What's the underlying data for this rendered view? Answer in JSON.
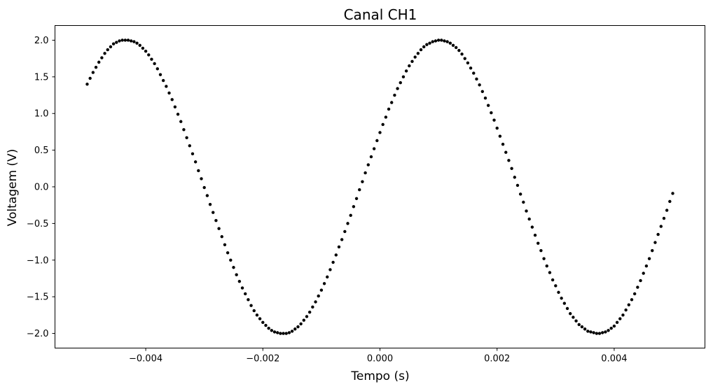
{
  "chart_data": {
    "type": "scatter",
    "title": "Canal CH1",
    "xlabel": "Tempo (s)",
    "ylabel": "Voltagem (V)",
    "xlim": [
      -0.00555,
      0.00555
    ],
    "ylim": [
      -2.2,
      2.2
    ],
    "grid": false,
    "marker_color": "#000000",
    "x_ticks": [
      -0.004,
      -0.002,
      0.0,
      0.002,
      0.004
    ],
    "x_tick_labels": [
      "−0.004",
      "−0.002",
      "0.000",
      "0.002",
      "0.004"
    ],
    "y_ticks": [
      2.0,
      1.5,
      1.0,
      0.5,
      0.0,
      -0.5,
      -1.0,
      -1.5,
      -2.0
    ],
    "y_tick_labels": [
      "2.0",
      "1.5",
      "1.0",
      "0.5",
      "0.0",
      "−0.5",
      "−1.0",
      "−1.5",
      "−2.0"
    ],
    "series": [
      {
        "points": [
          [
            -0.005,
            1.4
          ],
          [
            -0.00495,
            1.48
          ],
          [
            -0.0049,
            1.56
          ],
          [
            -0.00485,
            1.63
          ],
          [
            -0.0048,
            1.7
          ],
          [
            -0.00475,
            1.76
          ],
          [
            -0.0047,
            1.82
          ],
          [
            -0.00465,
            1.87
          ],
          [
            -0.0046,
            1.91
          ],
          [
            -0.00455,
            1.95
          ],
          [
            -0.0045,
            1.97
          ],
          [
            -0.00445,
            1.99
          ],
          [
            -0.0044,
            2.0
          ],
          [
            -0.00435,
            2.0
          ],
          [
            -0.0043,
            2.0
          ],
          [
            -0.00425,
            1.99
          ],
          [
            -0.0042,
            1.98
          ],
          [
            -0.00415,
            1.96
          ],
          [
            -0.0041,
            1.93
          ],
          [
            -0.00405,
            1.89
          ],
          [
            -0.004,
            1.85
          ],
          [
            -0.00395,
            1.8
          ],
          [
            -0.0039,
            1.74
          ],
          [
            -0.00385,
            1.68
          ],
          [
            -0.0038,
            1.61
          ],
          [
            -0.00375,
            1.53
          ],
          [
            -0.0037,
            1.45
          ],
          [
            -0.00365,
            1.37
          ],
          [
            -0.0036,
            1.28
          ],
          [
            -0.00355,
            1.19
          ],
          [
            -0.0035,
            1.09
          ],
          [
            -0.00345,
            0.99
          ],
          [
            -0.0034,
            0.89
          ],
          [
            -0.00335,
            0.78
          ],
          [
            -0.0033,
            0.67
          ],
          [
            -0.00325,
            0.56
          ],
          [
            -0.0032,
            0.45
          ],
          [
            -0.00315,
            0.34
          ],
          [
            -0.0031,
            0.22
          ],
          [
            -0.00305,
            0.11
          ],
          [
            -0.003,
            -0.01
          ],
          [
            -0.00295,
            -0.12
          ],
          [
            -0.0029,
            -0.24
          ],
          [
            -0.00285,
            -0.35
          ],
          [
            -0.0028,
            -0.46
          ],
          [
            -0.00275,
            -0.57
          ],
          [
            -0.0027,
            -0.68
          ],
          [
            -0.00265,
            -0.79
          ],
          [
            -0.0026,
            -0.9
          ],
          [
            -0.00255,
            -1.0
          ],
          [
            -0.0025,
            -1.1
          ],
          [
            -0.00245,
            -1.2
          ],
          [
            -0.0024,
            -1.29
          ],
          [
            -0.00235,
            -1.38
          ],
          [
            -0.0023,
            -1.46
          ],
          [
            -0.00225,
            -1.54
          ],
          [
            -0.0022,
            -1.62
          ],
          [
            -0.00215,
            -1.69
          ],
          [
            -0.0021,
            -1.75
          ],
          [
            -0.00205,
            -1.8
          ],
          [
            -0.002,
            -1.85
          ],
          [
            -0.00195,
            -1.89
          ],
          [
            -0.0019,
            -1.93
          ],
          [
            -0.00185,
            -1.96
          ],
          [
            -0.0018,
            -1.98
          ],
          [
            -0.00175,
            -1.99
          ],
          [
            -0.0017,
            -2.0
          ],
          [
            -0.00165,
            -2.0
          ],
          [
            -0.0016,
            -2.0
          ],
          [
            -0.00155,
            -1.99
          ],
          [
            -0.0015,
            -1.97
          ],
          [
            -0.00145,
            -1.94
          ],
          [
            -0.0014,
            -1.91
          ],
          [
            -0.00135,
            -1.87
          ],
          [
            -0.0013,
            -1.82
          ],
          [
            -0.00125,
            -1.77
          ],
          [
            -0.0012,
            -1.71
          ],
          [
            -0.00115,
            -1.64
          ],
          [
            -0.0011,
            -1.57
          ],
          [
            -0.00105,
            -1.49
          ],
          [
            -0.001,
            -1.41
          ],
          [
            -0.00095,
            -1.32
          ],
          [
            -0.0009,
            -1.23
          ],
          [
            -0.00085,
            -1.13
          ],
          [
            -0.0008,
            -1.03
          ],
          [
            -0.00075,
            -0.93
          ],
          [
            -0.0007,
            -0.82
          ],
          [
            -0.00065,
            -0.72
          ],
          [
            -0.0006,
            -0.61
          ],
          [
            -0.00055,
            -0.5
          ],
          [
            -0.0005,
            -0.39
          ],
          [
            -0.00045,
            -0.27
          ],
          [
            -0.0004,
            -0.16
          ],
          [
            -0.00035,
            -0.04
          ],
          [
            -0.0003,
            0.07
          ],
          [
            -0.00025,
            0.19
          ],
          [
            -0.0002,
            0.3
          ],
          [
            -0.00015,
            0.41
          ],
          [
            -0.0001,
            0.52
          ],
          [
            -5e-05,
            0.63
          ],
          [
            0.0,
            0.74
          ],
          [
            5e-05,
            0.85
          ],
          [
            0.0001,
            0.95
          ],
          [
            0.00015,
            1.06
          ],
          [
            0.0002,
            1.15
          ],
          [
            0.00025,
            1.25
          ],
          [
            0.0003,
            1.34
          ],
          [
            0.00035,
            1.42
          ],
          [
            0.0004,
            1.5
          ],
          [
            0.00045,
            1.58
          ],
          [
            0.0005,
            1.65
          ],
          [
            0.00055,
            1.71
          ],
          [
            0.0006,
            1.77
          ],
          [
            0.00065,
            1.82
          ],
          [
            0.0007,
            1.87
          ],
          [
            0.00075,
            1.91
          ],
          [
            0.0008,
            1.94
          ],
          [
            0.00085,
            1.96
          ],
          [
            0.0009,
            1.98
          ],
          [
            0.00095,
            1.99
          ],
          [
            0.001,
            2.0
          ],
          [
            0.00105,
            2.0
          ],
          [
            0.0011,
            1.99
          ],
          [
            0.00115,
            1.98
          ],
          [
            0.0012,
            1.96
          ],
          [
            0.00125,
            1.93
          ],
          [
            0.0013,
            1.9
          ],
          [
            0.00135,
            1.86
          ],
          [
            0.0014,
            1.81
          ],
          [
            0.00145,
            1.75
          ],
          [
            0.0015,
            1.69
          ],
          [
            0.00155,
            1.62
          ],
          [
            0.0016,
            1.55
          ],
          [
            0.00165,
            1.47
          ],
          [
            0.0017,
            1.39
          ],
          [
            0.00175,
            1.3
          ],
          [
            0.0018,
            1.21
          ],
          [
            0.00185,
            1.11
          ],
          [
            0.0019,
            1.01
          ],
          [
            0.00195,
            0.91
          ],
          [
            0.002,
            0.8
          ],
          [
            0.00205,
            0.69
          ],
          [
            0.0021,
            0.58
          ],
          [
            0.00215,
            0.47
          ],
          [
            0.0022,
            0.36
          ],
          [
            0.00225,
            0.25
          ],
          [
            0.0023,
            0.13
          ],
          [
            0.00235,
            0.02
          ],
          [
            0.0024,
            -0.1
          ],
          [
            0.00245,
            -0.21
          ],
          [
            0.0025,
            -0.33
          ],
          [
            0.00255,
            -0.44
          ],
          [
            0.0026,
            -0.55
          ],
          [
            0.00265,
            -0.66
          ],
          [
            0.0027,
            -0.77
          ],
          [
            0.00275,
            -0.87
          ],
          [
            0.0028,
            -0.98
          ],
          [
            0.00285,
            -1.08
          ],
          [
            0.0029,
            -1.17
          ],
          [
            0.00295,
            -1.27
          ],
          [
            0.003,
            -1.35
          ],
          [
            0.00305,
            -1.44
          ],
          [
            0.0031,
            -1.52
          ],
          [
            0.00315,
            -1.59
          ],
          [
            0.0032,
            -1.66
          ],
          [
            0.00325,
            -1.73
          ],
          [
            0.0033,
            -1.78
          ],
          [
            0.00335,
            -1.83
          ],
          [
            0.0034,
            -1.88
          ],
          [
            0.00345,
            -1.91
          ],
          [
            0.0035,
            -1.94
          ],
          [
            0.00355,
            -1.97
          ],
          [
            0.0036,
            -1.98
          ],
          [
            0.00365,
            -1.99
          ],
          [
            0.0037,
            -2.0
          ],
          [
            0.00375,
            -2.0
          ],
          [
            0.0038,
            -1.99
          ],
          [
            0.00385,
            -1.98
          ],
          [
            0.0039,
            -1.96
          ],
          [
            0.00395,
            -1.93
          ],
          [
            0.004,
            -1.9
          ],
          [
            0.00405,
            -1.85
          ],
          [
            0.0041,
            -1.8
          ],
          [
            0.00415,
            -1.75
          ],
          [
            0.0042,
            -1.68
          ],
          [
            0.00425,
            -1.61
          ],
          [
            0.0043,
            -1.54
          ],
          [
            0.00435,
            -1.46
          ],
          [
            0.0044,
            -1.37
          ],
          [
            0.00445,
            -1.28
          ],
          [
            0.0045,
            -1.18
          ],
          [
            0.00455,
            -1.08
          ],
          [
            0.0046,
            -0.98
          ],
          [
            0.00465,
            -0.87
          ],
          [
            0.0047,
            -0.76
          ],
          [
            0.00475,
            -0.65
          ],
          [
            0.0048,
            -0.54
          ],
          [
            0.00485,
            -0.43
          ],
          [
            0.0049,
            -0.32
          ],
          [
            0.00495,
            -0.2
          ],
          [
            0.005,
            -0.09
          ]
        ]
      }
    ]
  }
}
